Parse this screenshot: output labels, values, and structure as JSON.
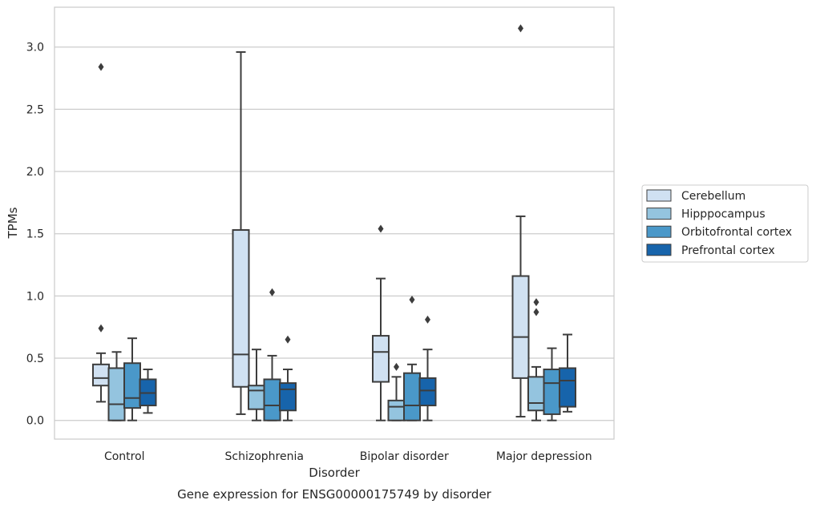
{
  "chart_data": {
    "type": "box",
    "title": "Gene expression for ENSG00000175749 by disorder",
    "xlabel": "Disorder",
    "ylabel": "TPMs",
    "ylim": [
      -0.15,
      3.32
    ],
    "yticks": [
      "0.0",
      "0.5",
      "1.0",
      "1.5",
      "2.0",
      "2.5",
      "3.0"
    ],
    "categories": [
      "Control",
      "Schizophrenia",
      "Bipolar disorder",
      "Major depression"
    ],
    "grid": true,
    "legend_position": "right",
    "series": [
      {
        "name": "Cerebellum",
        "color": "#d0e1f2",
        "boxes": [
          {
            "whislo": 0.15,
            "q1": 0.28,
            "med": 0.34,
            "q3": 0.45,
            "whishi": 0.54,
            "fliers": [
              0.74,
              2.84
            ]
          },
          {
            "whislo": 0.05,
            "q1": 0.27,
            "med": 0.53,
            "q3": 1.53,
            "whishi": 2.96,
            "fliers": []
          },
          {
            "whislo": 0.0,
            "q1": 0.31,
            "med": 0.55,
            "q3": 0.68,
            "whishi": 1.14,
            "fliers": [
              1.54
            ]
          },
          {
            "whislo": 0.03,
            "q1": 0.34,
            "med": 0.67,
            "q3": 1.16,
            "whishi": 1.64,
            "fliers": [
              3.15
            ]
          }
        ]
      },
      {
        "name": "Hipppocampus",
        "color": "#94c4df",
        "boxes": [
          {
            "whislo": 0.0,
            "q1": 0.0,
            "med": 0.13,
            "q3": 0.42,
            "whishi": 0.55,
            "fliers": []
          },
          {
            "whislo": 0.0,
            "q1": 0.09,
            "med": 0.24,
            "q3": 0.28,
            "whishi": 0.57,
            "fliers": []
          },
          {
            "whislo": 0.0,
            "q1": 0.0,
            "med": 0.11,
            "q3": 0.16,
            "whishi": 0.35,
            "fliers": [
              0.43
            ]
          },
          {
            "whislo": 0.0,
            "q1": 0.08,
            "med": 0.14,
            "q3": 0.35,
            "whishi": 0.43,
            "fliers": [
              0.87,
              0.95
            ]
          }
        ]
      },
      {
        "name": "Orbitofrontal cortex",
        "color": "#4a98c9",
        "boxes": [
          {
            "whislo": 0.0,
            "q1": 0.1,
            "med": 0.18,
            "q3": 0.46,
            "whishi": 0.66,
            "fliers": []
          },
          {
            "whislo": 0.0,
            "q1": 0.0,
            "med": 0.12,
            "q3": 0.33,
            "whishi": 0.52,
            "fliers": [
              1.03
            ]
          },
          {
            "whislo": 0.0,
            "q1": 0.0,
            "med": 0.12,
            "q3": 0.38,
            "whishi": 0.45,
            "fliers": [
              0.97
            ]
          },
          {
            "whislo": 0.0,
            "q1": 0.05,
            "med": 0.3,
            "q3": 0.41,
            "whishi": 0.58,
            "fliers": []
          }
        ]
      },
      {
        "name": "Prefrontal cortex",
        "color": "#1764ab",
        "boxes": [
          {
            "whislo": 0.06,
            "q1": 0.12,
            "med": 0.22,
            "q3": 0.33,
            "whishi": 0.41,
            "fliers": []
          },
          {
            "whislo": 0.0,
            "q1": 0.08,
            "med": 0.25,
            "q3": 0.3,
            "whishi": 0.41,
            "fliers": [
              0.65
            ]
          },
          {
            "whislo": 0.0,
            "q1": 0.12,
            "med": 0.24,
            "q3": 0.34,
            "whishi": 0.57,
            "fliers": [
              0.81
            ]
          },
          {
            "whislo": 0.07,
            "q1": 0.11,
            "med": 0.32,
            "q3": 0.42,
            "whishi": 0.69,
            "fliers": []
          }
        ]
      }
    ]
  }
}
